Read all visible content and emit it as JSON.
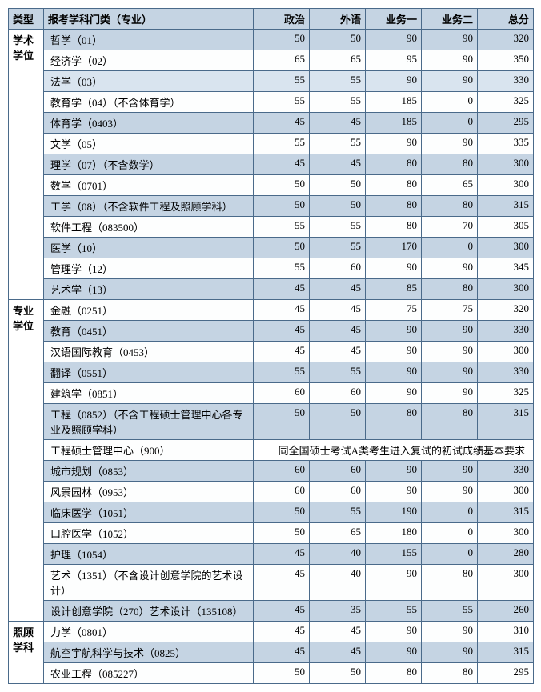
{
  "headers": {
    "type": "类型",
    "major": "报考学科门类（专业）",
    "politics": "政治",
    "foreign": "外语",
    "course1": "业务一",
    "course2": "业务二",
    "total": "总分"
  },
  "categories": [
    {
      "label": "学术\n学位",
      "rows": [
        {
          "name": "哲学（01）",
          "c1": 50,
          "c2": 50,
          "c3": 90,
          "c4": 90,
          "total": 320,
          "cls": "even"
        },
        {
          "name": "经济学（02）",
          "c1": 65,
          "c2": 65,
          "c3": 95,
          "c4": 90,
          "total": 350,
          "cls": "odd"
        },
        {
          "name": "法学（03）",
          "c1": 55,
          "c2": 55,
          "c3": 90,
          "c4": 90,
          "total": 330,
          "cls": "hl"
        },
        {
          "name": "教育学（04）（不含体育学）",
          "c1": 55,
          "c2": 55,
          "c3": 185,
          "c4": 0,
          "total": 325,
          "cls": "odd"
        },
        {
          "name": "体育学（0403）",
          "c1": 45,
          "c2": 45,
          "c3": 185,
          "c4": 0,
          "total": 295,
          "cls": "even"
        },
        {
          "name": "文学（05）",
          "c1": 55,
          "c2": 55,
          "c3": 90,
          "c4": 90,
          "total": 335,
          "cls": "odd"
        },
        {
          "name": "理学（07）（不含数学）",
          "c1": 45,
          "c2": 45,
          "c3": 80,
          "c4": 80,
          "total": 300,
          "cls": "even"
        },
        {
          "name": "数学（0701）",
          "c1": 50,
          "c2": 50,
          "c3": 80,
          "c4": 65,
          "total": 300,
          "cls": "odd"
        },
        {
          "name": "工学（08）（不含软件工程及照顾学科）",
          "c1": 50,
          "c2": 50,
          "c3": 80,
          "c4": 80,
          "total": 315,
          "cls": "even"
        },
        {
          "name": "软件工程（083500）",
          "c1": 55,
          "c2": 55,
          "c3": 80,
          "c4": 70,
          "total": 305,
          "cls": "odd"
        },
        {
          "name": "医学（10）",
          "c1": 50,
          "c2": 55,
          "c3": 170,
          "c4": 0,
          "total": 300,
          "cls": "even"
        },
        {
          "name": "管理学（12）",
          "c1": 55,
          "c2": 60,
          "c3": 90,
          "c4": 90,
          "total": 345,
          "cls": "odd"
        },
        {
          "name": "艺术学（13）",
          "c1": 45,
          "c2": 45,
          "c3": 85,
          "c4": 80,
          "total": 300,
          "cls": "even"
        }
      ]
    },
    {
      "label": "专业\n学位",
      "rows": [
        {
          "name": "金融（0251）",
          "c1": 45,
          "c2": 45,
          "c3": 75,
          "c4": 75,
          "total": 320,
          "cls": "odd"
        },
        {
          "name": "教育（0451）",
          "c1": 45,
          "c2": 45,
          "c3": 90,
          "c4": 90,
          "total": 330,
          "cls": "even"
        },
        {
          "name": "汉语国际教育（0453）",
          "c1": 45,
          "c2": 45,
          "c3": 90,
          "c4": 90,
          "total": 300,
          "cls": "odd"
        },
        {
          "name": "翻译（0551）",
          "c1": 55,
          "c2": 55,
          "c3": 90,
          "c4": 90,
          "total": 330,
          "cls": "even"
        },
        {
          "name": "建筑学（0851）",
          "c1": 60,
          "c2": 60,
          "c3": 90,
          "c4": 90,
          "total": 325,
          "cls": "odd"
        },
        {
          "name": "工程（0852）（不含工程硕士管理中心各专业及照顾学科）",
          "c1": 50,
          "c2": 50,
          "c3": 80,
          "c4": 80,
          "total": 315,
          "cls": "even"
        },
        {
          "name": "工程硕士管理中心（900）",
          "note": "同全国硕士考试A类考生进入复试的初试成绩基本要求",
          "cls": "odd",
          "span": true
        },
        {
          "name": "城市规划（0853）",
          "c1": 60,
          "c2": 60,
          "c3": 90,
          "c4": 90,
          "total": 330,
          "cls": "even"
        },
        {
          "name": "风景园林（0953）",
          "c1": 60,
          "c2": 60,
          "c3": 90,
          "c4": 90,
          "total": 300,
          "cls": "odd"
        },
        {
          "name": "临床医学（1051）",
          "c1": 50,
          "c2": 55,
          "c3": 190,
          "c4": 0,
          "total": 315,
          "cls": "even"
        },
        {
          "name": "口腔医学（1052）",
          "c1": 50,
          "c2": 65,
          "c3": 180,
          "c4": 0,
          "total": 300,
          "cls": "odd"
        },
        {
          "name": "护理（1054）",
          "c1": 45,
          "c2": 40,
          "c3": 155,
          "c4": 0,
          "total": 280,
          "cls": "even"
        },
        {
          "name": "艺术（1351）（不含设计创意学院的艺术设计）",
          "c1": 45,
          "c2": 40,
          "c3": 90,
          "c4": 80,
          "total": 300,
          "cls": "odd"
        },
        {
          "name": "设计创意学院（270）艺术设计（135108）",
          "c1": 45,
          "c2": 35,
          "c3": 55,
          "c4": 55,
          "total": 260,
          "cls": "even"
        }
      ]
    },
    {
      "label": "照顾\n学科",
      "rows": [
        {
          "name": "力学（0801）",
          "c1": 45,
          "c2": 45,
          "c3": 90,
          "c4": 90,
          "total": 310,
          "cls": "odd"
        },
        {
          "name": "航空宇航科学与技术（0825）",
          "c1": 45,
          "c2": 45,
          "c3": 90,
          "c4": 90,
          "total": 315,
          "cls": "even"
        },
        {
          "name": "农业工程（085227）",
          "c1": 50,
          "c2": 50,
          "c3": 80,
          "c4": 80,
          "total": 295,
          "cls": "odd"
        }
      ]
    }
  ]
}
